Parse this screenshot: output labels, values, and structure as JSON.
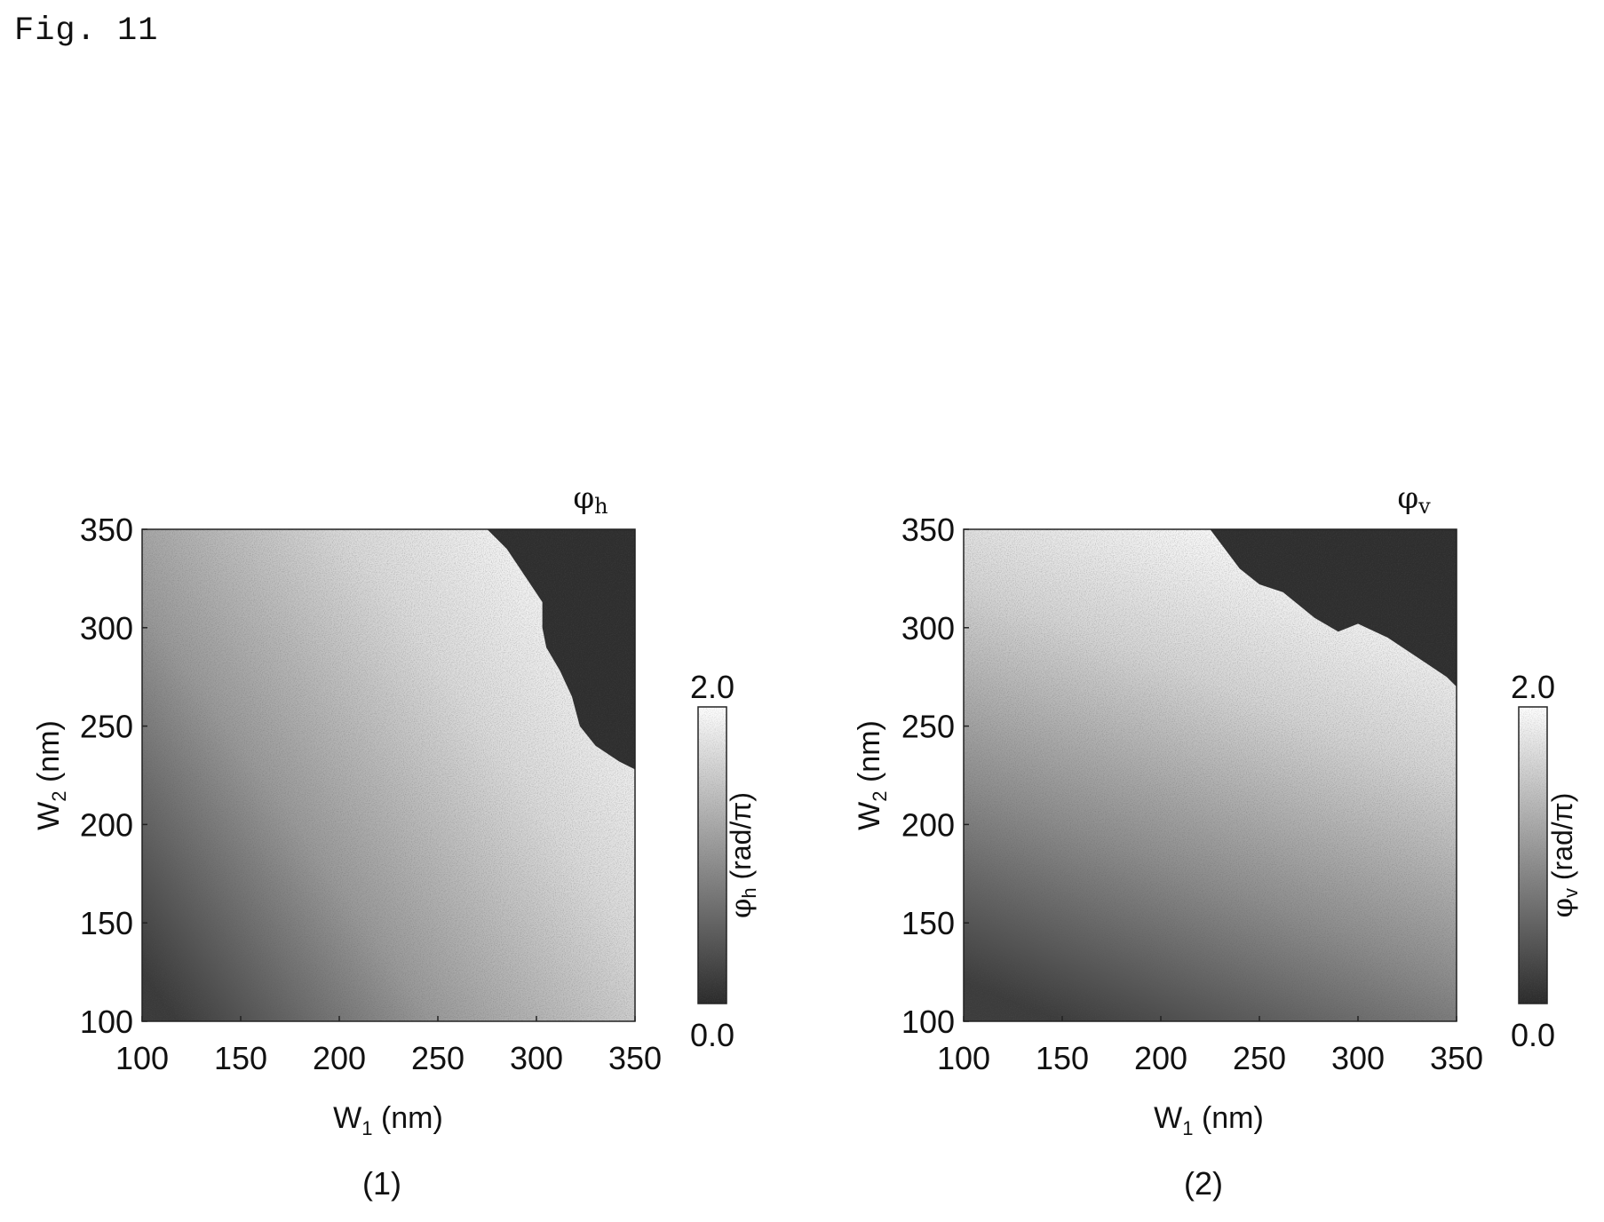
{
  "figure_label": "Fig. 11",
  "chart_data": [
    {
      "type": "heatmap",
      "panel_label": "(1)",
      "title_symbol": "φ",
      "title_sub": "h",
      "xlabel": {
        "main": "W",
        "sub": "1",
        "unit": "(nm)"
      },
      "ylabel": {
        "main": "W",
        "sub": "2",
        "unit": "(nm)"
      },
      "xlim": [
        100,
        350
      ],
      "ylim": [
        100,
        350
      ],
      "xticks": [
        "100",
        "150",
        "200",
        "250",
        "300",
        "350"
      ],
      "yticks": [
        "100",
        "150",
        "200",
        "250",
        "300",
        "350"
      ],
      "colorbar": {
        "label_symbol": "φ",
        "label_sub": "h",
        "label_unit": "(rad/π)",
        "min": 0.0,
        "max": 2.0,
        "min_label": "0.0",
        "max_label": "2.0",
        "colors": [
          "#2a2a2a",
          "#ffffff"
        ]
      },
      "dark_region_boundary": [
        [
          275,
          350
        ],
        [
          285,
          340
        ],
        [
          295,
          325
        ],
        [
          303,
          313
        ],
        [
          303,
          300
        ],
        [
          305,
          290
        ],
        [
          312,
          278
        ],
        [
          318,
          265
        ],
        [
          322,
          250
        ],
        [
          330,
          240
        ],
        [
          342,
          232
        ],
        [
          350,
          228
        ]
      ],
      "grid": false
    },
    {
      "type": "heatmap",
      "panel_label": "(2)",
      "title_symbol": "φ",
      "title_sub": "v",
      "xlabel": {
        "main": "W",
        "sub": "1",
        "unit": "(nm)"
      },
      "ylabel": {
        "main": "W",
        "sub": "2",
        "unit": "(nm)"
      },
      "xlim": [
        100,
        350
      ],
      "ylim": [
        100,
        350
      ],
      "xticks": [
        "100",
        "150",
        "200",
        "250",
        "300",
        "350"
      ],
      "yticks": [
        "100",
        "150",
        "200",
        "250",
        "300",
        "350"
      ],
      "colorbar": {
        "label_symbol": "φ",
        "label_sub": "v",
        "label_unit": "(rad/π)",
        "min": 0.0,
        "max": 2.0,
        "min_label": "0.0",
        "max_label": "2.0",
        "colors": [
          "#2a2a2a",
          "#ffffff"
        ]
      },
      "dark_region_boundary": [
        [
          225,
          350
        ],
        [
          240,
          330
        ],
        [
          250,
          322
        ],
        [
          262,
          318
        ],
        [
          278,
          305
        ],
        [
          290,
          298
        ],
        [
          300,
          302
        ],
        [
          315,
          295
        ],
        [
          330,
          285
        ],
        [
          345,
          275
        ],
        [
          350,
          270
        ]
      ],
      "grid": false
    }
  ]
}
